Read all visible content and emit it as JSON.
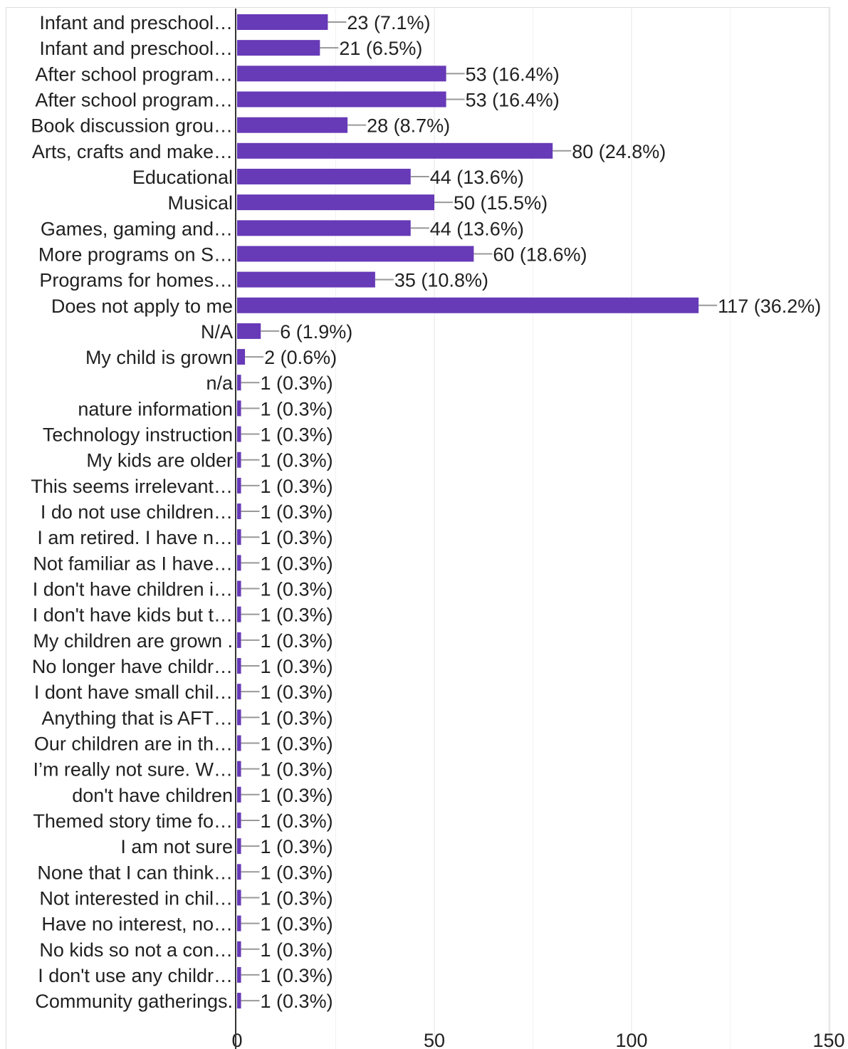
{
  "chart_data": {
    "type": "bar",
    "orientation": "horizontal",
    "categories": [
      "Infant and preschool…",
      "Infant and preschool…",
      "After school program…",
      "After school program…",
      "Book discussion grou…",
      "Arts, crafts and make…",
      "Educational",
      "Musical",
      "Games, gaming and…",
      "More programs on S…",
      "Programs for homes…",
      "Does not apply to me",
      "N/A",
      "My child is grown",
      "n/a",
      "nature information",
      "Technology instruction",
      "My kids are older",
      "This seems irrelevant…",
      "I do not use children…",
      "I am retired. I have n…",
      "Not familiar as I have…",
      "I don't have children i…",
      "I don't have kids but t…",
      "My children are grown .",
      "No longer have childr…",
      "I dont have small chil…",
      "Anything that is AFT…",
      "Our children are in th…",
      "I’m really not sure. W…",
      "don't have children",
      "Themed story time fo…",
      "I am not sure",
      "None that I can think…",
      "Not interested in chil…",
      "Have no interest, no…",
      "No kids so not a con…",
      "I don't use any childr…",
      "Community gatherings."
    ],
    "values": [
      23,
      21,
      53,
      53,
      28,
      80,
      44,
      50,
      44,
      60,
      35,
      117,
      6,
      2,
      1,
      1,
      1,
      1,
      1,
      1,
      1,
      1,
      1,
      1,
      1,
      1,
      1,
      1,
      1,
      1,
      1,
      1,
      1,
      1,
      1,
      1,
      1,
      1,
      1
    ],
    "value_labels": [
      "23 (7.1%)",
      "21 (6.5%)",
      "53 (16.4%)",
      "53 (16.4%)",
      "28 (8.7%)",
      "80 (24.8%)",
      "44 (13.6%)",
      "50 (15.5%)",
      "44 (13.6%)",
      "60 (18.6%)",
      "35 (10.8%)",
      "117 (36.2%)",
      "6 (1.9%)",
      "2 (0.6%)",
      "1 (0.3%)",
      "1 (0.3%)",
      "1 (0.3%)",
      "1 (0.3%)",
      "1 (0.3%)",
      "1 (0.3%)",
      "1 (0.3%)",
      "1 (0.3%)",
      "1 (0.3%)",
      "1 (0.3%)",
      "1 (0.3%)",
      "1 (0.3%)",
      "1 (0.3%)",
      "1 (0.3%)",
      "1 (0.3%)",
      "1 (0.3%)",
      "1 (0.3%)",
      "1 (0.3%)",
      "1 (0.3%)",
      "1 (0.3%)",
      "1 (0.3%)",
      "1 (0.3%)",
      "1 (0.3%)",
      "1 (0.3%)",
      "1 (0.3%)"
    ],
    "x_ticks": [
      "0",
      "50",
      "100",
      "150"
    ],
    "xlim": [
      0,
      150
    ],
    "grid": true,
    "bar_color": "#673ab7",
    "axis_color": "#333333",
    "grid_color": "#e6e6e6",
    "leader_color": "#999999",
    "title": "",
    "xlabel": "",
    "ylabel": ""
  }
}
